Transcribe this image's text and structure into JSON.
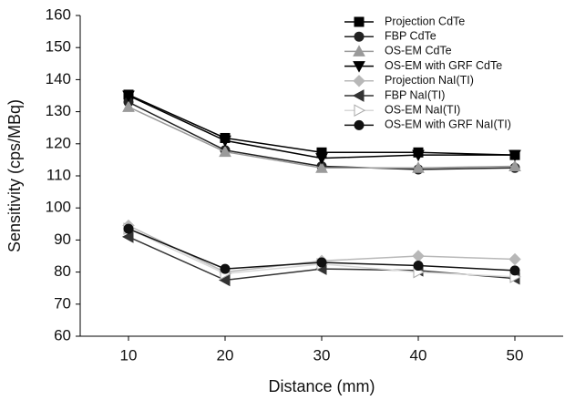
{
  "chart_data": {
    "type": "line",
    "x_label": "Distance (mm)",
    "y_label": "Sensitivity (cps/MBq)",
    "x": [
      10,
      20,
      30,
      40,
      50
    ],
    "xlim": [
      5,
      55
    ],
    "xticks": [
      10,
      20,
      30,
      40,
      50
    ],
    "ylim": [
      60,
      160
    ],
    "yticks": [
      60,
      70,
      80,
      90,
      100,
      110,
      120,
      130,
      140,
      150,
      160
    ],
    "grid": false,
    "legend": "upper right",
    "series": [
      {
        "name": "Projection CdTe",
        "color": "#000000",
        "marker": "square",
        "values": [
          135.3,
          121.8,
          117.3,
          117.3,
          116.5
        ]
      },
      {
        "name": "FBP CdTe",
        "color": "#222222",
        "marker": "circle",
        "values": [
          133,
          118,
          113,
          112,
          112.5
        ]
      },
      {
        "name": "OS-EM CdTe",
        "color": "#9a9a9a",
        "marker": "triangle-up",
        "values": [
          131.5,
          117.5,
          112.5,
          112.5,
          113
        ]
      },
      {
        "name": "OS-EM with GRF CdTe",
        "color": "#000000",
        "marker": "triangle-down",
        "values": [
          135,
          121,
          115.5,
          116.5,
          116.5
        ]
      },
      {
        "name": "Projection NaI(TI)",
        "color": "#b8b8b8",
        "marker": "diamond",
        "values": [
          94.5,
          80,
          83.5,
          85,
          84
        ]
      },
      {
        "name": "FBP NaI(TI)",
        "color": "#333333",
        "marker": "triangle-left",
        "values": [
          91,
          77.5,
          81,
          80.5,
          78
        ]
      },
      {
        "name": "OS-EM NaI(TI)",
        "color": "#d8d8d8",
        "marker": "triangle-right",
        "values": [
          93.5,
          79.5,
          82.5,
          80,
          78.5
        ]
      },
      {
        "name": "OS-EM with GRF NaI(TI)",
        "color": "#111111",
        "marker": "circle",
        "values": [
          93.5,
          81,
          83,
          82,
          80.5
        ]
      }
    ]
  }
}
